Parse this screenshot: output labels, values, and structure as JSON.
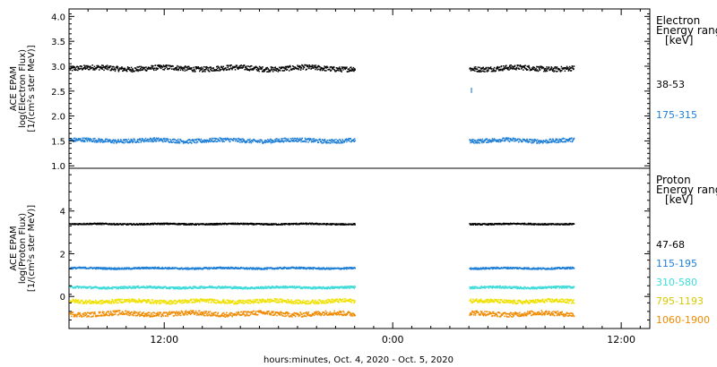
{
  "chart_data": {
    "type": "scatter",
    "xlabel": "hours:minutes, Oct.  4, 2020 - Oct.  5, 2020",
    "xlim_hours": [
      7,
      37.5
    ],
    "xticks": [
      {
        "label": "12:00",
        "hour": 12
      },
      {
        "label": "0:00",
        "hour": 24
      },
      {
        "label": "12:00",
        "hour": 36
      }
    ],
    "data_segments_hours": [
      [
        7.0,
        22.0
      ],
      [
        28.0,
        33.5
      ]
    ],
    "panels": [
      {
        "id": "electron",
        "ylabel_lines": [
          "ACE EPAM",
          "log(Electron Flux)",
          "[1/(cm²s ster MeV)]"
        ],
        "ylim": [
          0.95,
          4.15
        ],
        "yticks": [
          1.0,
          1.5,
          2.0,
          2.5,
          3.0,
          3.5,
          4.0
        ],
        "ytick_labels": [
          "1.0",
          "1.5",
          "2.0",
          "2.5",
          "3.0",
          "3.5",
          "4.0"
        ],
        "legend_title": [
          "Electron",
          "Energy ranges",
          "[keV]"
        ],
        "series": [
          {
            "name": "38-53",
            "color": "#000000",
            "level": 2.97,
            "noise": 0.05
          },
          {
            "name": "175-315",
            "color": "#1f7fd6",
            "level": 1.52,
            "noise": 0.04
          }
        ],
        "annotations": [
          {
            "hour": 28.1,
            "value": 2.53,
            "color": "#1f7fd6",
            "note": "isolated point"
          }
        ]
      },
      {
        "id": "proton",
        "ylabel_lines": [
          "ACE EPAM",
          "log(Proton Flux)",
          "[1/(cm²s ster MeV)]"
        ],
        "ylim": [
          -1.5,
          6.0
        ],
        "yticks": [
          0,
          2,
          4
        ],
        "ytick_labels": [
          "0",
          "2",
          "4"
        ],
        "legend_title": [
          "Proton",
          "Energy ranges",
          "[keV]"
        ],
        "series": [
          {
            "name": "47-68",
            "color": "#000000",
            "level": 3.42,
            "noise": 0.03
          },
          {
            "name": "115-195",
            "color": "#1f7fd6",
            "level": 1.35,
            "noise": 0.04
          },
          {
            "name": "310-580",
            "color": "#3ddbd9",
            "level": 0.45,
            "noise": 0.05
          },
          {
            "name": "795-1193",
            "color": "#f0e000",
            "level": -0.2,
            "noise": 0.09
          },
          {
            "name": "1060-1900",
            "color": "#f08a00",
            "level": -0.78,
            "noise": 0.11
          }
        ]
      }
    ]
  }
}
